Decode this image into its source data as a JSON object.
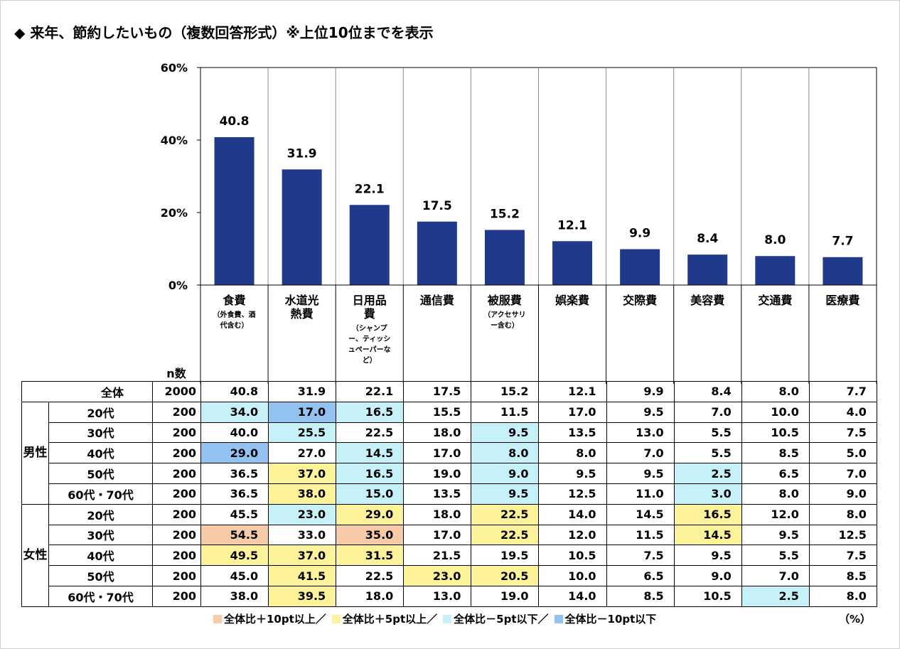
{
  "title": "◆ 来年、節約したいもの（複数回答形式）※上位10位までを表示",
  "chart_data": {
    "type": "bar",
    "categories": [
      "食費",
      "水道光熱費",
      "日用品費",
      "通信費",
      "被服費",
      "娯楽費",
      "交際費",
      "美容費",
      "交通費",
      "医療費"
    ],
    "category_labels": [
      {
        "main": "食費",
        "sub": "（外食費、酒代含む）"
      },
      {
        "main": "水道光熱費",
        "sub": ""
      },
      {
        "main": "日用品費",
        "sub": "（シャンプー、ティッシュペーパーなど）"
      },
      {
        "main": "通信費",
        "sub": ""
      },
      {
        "main": "被服費",
        "sub": "（アクセサリー含む）"
      },
      {
        "main": "娯楽費",
        "sub": ""
      },
      {
        "main": "交際費",
        "sub": ""
      },
      {
        "main": "美容費",
        "sub": ""
      },
      {
        "main": "交通費",
        "sub": ""
      },
      {
        "main": "医療費",
        "sub": ""
      }
    ],
    "values": [
      40.8,
      31.9,
      22.1,
      17.5,
      15.2,
      12.1,
      9.9,
      8.4,
      8.0,
      7.7
    ],
    "value_labels": [
      "40.8",
      "31.9",
      "22.1",
      "17.5",
      "15.2",
      "12.1",
      "9.9",
      "8.4",
      "8.0",
      "7.7"
    ],
    "ylim": [
      0,
      60
    ],
    "yticks": [
      0,
      20,
      40,
      60
    ],
    "ytick_labels": [
      "0%",
      "20%",
      "40%",
      "60%"
    ],
    "bar_color": "#1f3a8a",
    "grid": "vertical-category-dividers"
  },
  "table": {
    "n_header": "n数",
    "rows": [
      {
        "group": "",
        "label": "全体",
        "n": "2000",
        "values": [
          "40.8",
          "31.9",
          "22.1",
          "17.5",
          "15.2",
          "12.1",
          "9.9",
          "8.4",
          "8.0",
          "7.7"
        ],
        "marks": [
          "",
          "",
          "",
          "",
          "",
          "",
          "",
          "",
          "",
          ""
        ]
      },
      {
        "group": "男性",
        "label": "20代",
        "n": "200",
        "values": [
          "34.0",
          "17.0",
          "16.5",
          "15.5",
          "11.5",
          "17.0",
          "9.5",
          "7.0",
          "10.0",
          "4.0"
        ],
        "marks": [
          "m5",
          "m10",
          "m5",
          "",
          "",
          "",
          "",
          "",
          "",
          ""
        ]
      },
      {
        "group": "男性",
        "label": "30代",
        "n": "200",
        "values": [
          "40.0",
          "25.5",
          "22.5",
          "18.0",
          "9.5",
          "13.5",
          "13.0",
          "5.5",
          "10.5",
          "7.5"
        ],
        "marks": [
          "",
          "m5",
          "",
          "",
          "m5",
          "",
          "",
          "",
          "",
          ""
        ]
      },
      {
        "group": "男性",
        "label": "40代",
        "n": "200",
        "values": [
          "29.0",
          "27.0",
          "14.5",
          "17.0",
          "8.0",
          "8.0",
          "7.0",
          "5.5",
          "8.5",
          "5.0"
        ],
        "marks": [
          "m10",
          "",
          "m5",
          "",
          "m5",
          "",
          "",
          "",
          "",
          ""
        ]
      },
      {
        "group": "男性",
        "label": "50代",
        "n": "200",
        "values": [
          "36.5",
          "37.0",
          "16.5",
          "19.0",
          "9.0",
          "9.5",
          "9.5",
          "2.5",
          "6.5",
          "7.0"
        ],
        "marks": [
          "",
          "p5",
          "m5",
          "",
          "m5",
          "",
          "",
          "m5",
          "",
          ""
        ]
      },
      {
        "group": "男性",
        "label": "60代・70代",
        "n": "200",
        "values": [
          "36.5",
          "38.0",
          "15.0",
          "13.5",
          "9.5",
          "12.5",
          "11.0",
          "3.0",
          "8.0",
          "9.0"
        ],
        "marks": [
          "",
          "p5",
          "m5",
          "",
          "m5",
          "",
          "",
          "m5",
          "",
          ""
        ]
      },
      {
        "group": "女性",
        "label": "20代",
        "n": "200",
        "values": [
          "45.5",
          "23.0",
          "29.0",
          "18.0",
          "22.5",
          "14.0",
          "14.5",
          "16.5",
          "12.0",
          "8.0"
        ],
        "marks": [
          "",
          "m5",
          "p5",
          "",
          "p5",
          "",
          "",
          "p5",
          "",
          ""
        ]
      },
      {
        "group": "女性",
        "label": "30代",
        "n": "200",
        "values": [
          "54.5",
          "33.0",
          "35.0",
          "17.0",
          "22.5",
          "12.0",
          "11.5",
          "14.5",
          "9.5",
          "12.5"
        ],
        "marks": [
          "p10",
          "",
          "p10",
          "",
          "p5",
          "",
          "",
          "p5",
          "",
          ""
        ]
      },
      {
        "group": "女性",
        "label": "40代",
        "n": "200",
        "values": [
          "49.5",
          "37.0",
          "31.5",
          "21.5",
          "19.5",
          "10.5",
          "7.5",
          "9.5",
          "5.5",
          "7.5"
        ],
        "marks": [
          "p5",
          "p5",
          "p5",
          "",
          "",
          "",
          "",
          "",
          "",
          ""
        ]
      },
      {
        "group": "女性",
        "label": "50代",
        "n": "200",
        "values": [
          "45.0",
          "41.5",
          "22.5",
          "23.0",
          "20.5",
          "10.0",
          "6.5",
          "9.0",
          "7.0",
          "8.5"
        ],
        "marks": [
          "",
          "p5",
          "",
          "p5",
          "p5",
          "",
          "",
          "",
          "",
          ""
        ]
      },
      {
        "group": "女性",
        "label": "60代・70代",
        "n": "200",
        "values": [
          "38.0",
          "39.5",
          "18.0",
          "13.0",
          "19.0",
          "14.0",
          "8.5",
          "10.5",
          "2.5",
          "8.0"
        ],
        "marks": [
          "",
          "p5",
          "",
          "",
          "",
          "",
          "",
          "",
          "m5",
          ""
        ]
      }
    ]
  },
  "legend": [
    {
      "key": "p10",
      "label": "全体比＋10pt以上／",
      "color": "#f8cba8"
    },
    {
      "key": "p5",
      "label": "全体比＋5pt以上／",
      "color": "#fcf29a"
    },
    {
      "key": "m5",
      "label": "全体比－5pt以下／",
      "color": "#c6f1f9"
    },
    {
      "key": "m10",
      "label": "全体比－10pt以下",
      "color": "#94c2f0"
    }
  ],
  "unit": "（%）"
}
